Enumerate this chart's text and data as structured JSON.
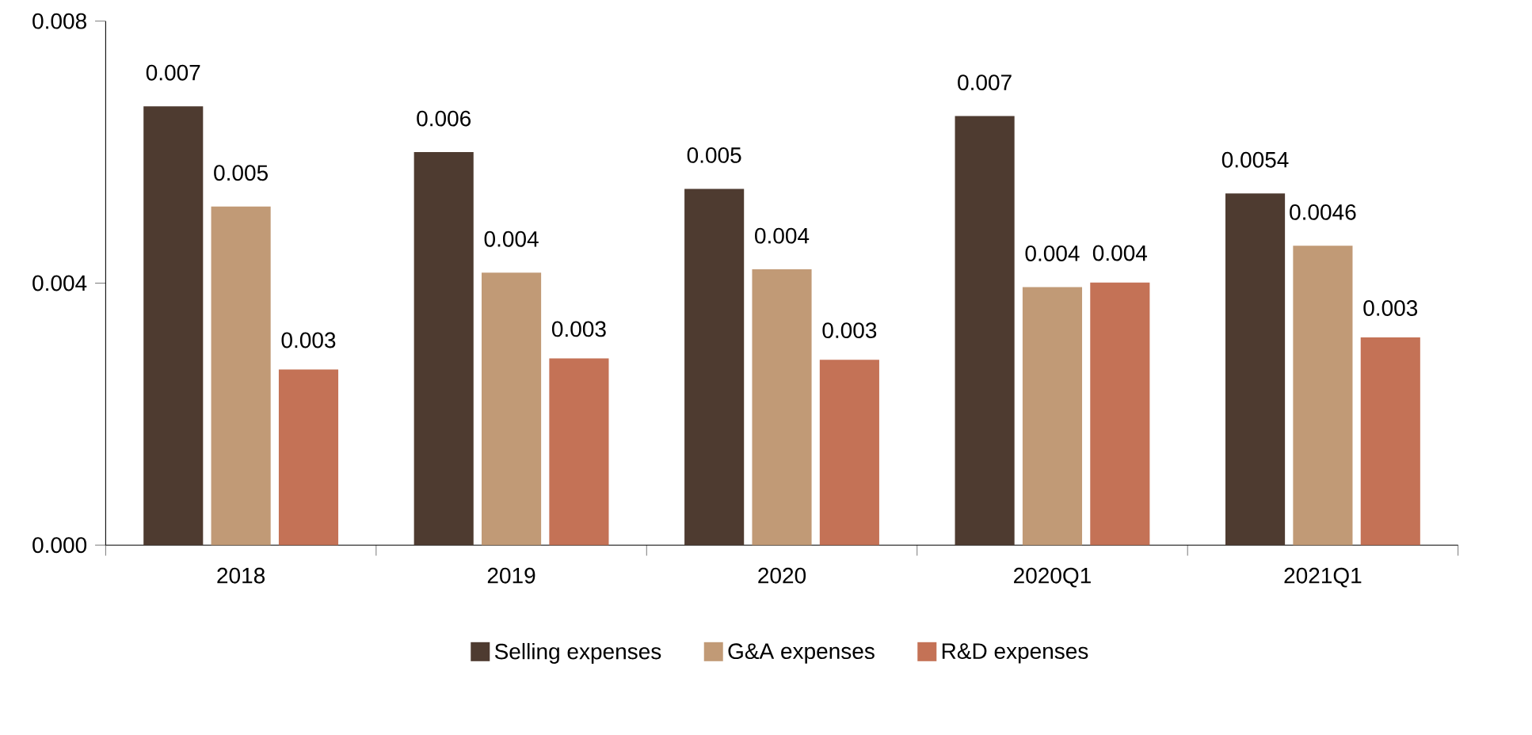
{
  "chart_data": {
    "type": "bar",
    "categories": [
      "2018",
      "2019",
      "2020",
      "2020Q1",
      "2021Q1"
    ],
    "series": [
      {
        "name": "Selling expenses",
        "color": "#4e3b30",
        "values": [
          0.0067,
          0.006,
          0.00544,
          0.00655,
          0.00537
        ],
        "value_labels": [
          "0.007",
          "0.006",
          "0.005",
          "0.007",
          "0.0054"
        ]
      },
      {
        "name": "G&A expenses",
        "color": "#c19a76",
        "values": [
          0.00517,
          0.00416,
          0.00421,
          0.00394,
          0.00457
        ],
        "value_labels": [
          "0.005",
          "0.004",
          "0.004",
          "0.004",
          "0.0046"
        ]
      },
      {
        "name": "R&D expenses",
        "color": "#c47256",
        "values": [
          0.00268,
          0.00285,
          0.00283,
          0.00401,
          0.00317
        ],
        "value_labels": [
          "0.003",
          "0.003",
          "0.003",
          "0.004",
          "0.003"
        ]
      }
    ],
    "ylim": [
      0,
      0.008
    ],
    "yticks": [
      {
        "value": 0,
        "label": "0.000"
      },
      {
        "value": 0.004,
        "label": "0.004"
      },
      {
        "value": 0.008,
        "label": "0.008"
      }
    ],
    "grid": false,
    "legend": "bottom"
  }
}
